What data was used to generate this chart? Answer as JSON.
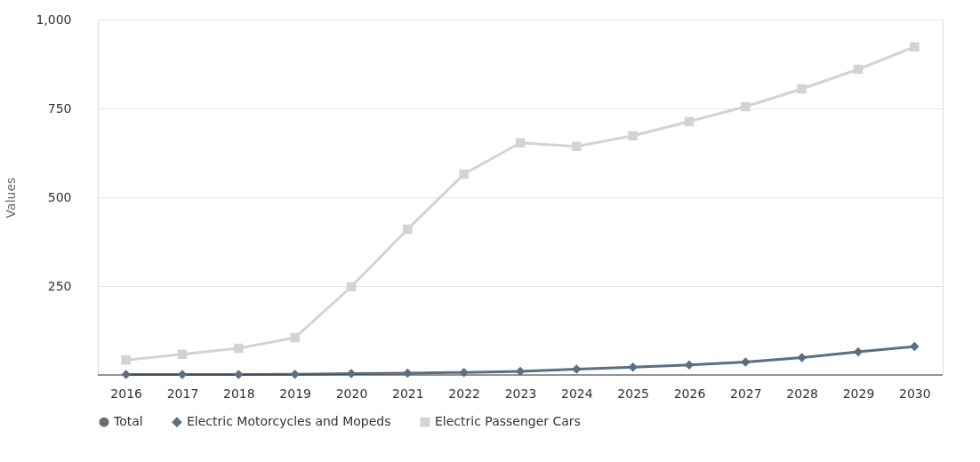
{
  "chart_data": {
    "type": "line",
    "ylabel": "Values",
    "categories": [
      "2016",
      "2017",
      "2018",
      "2019",
      "2020",
      "2021",
      "2022",
      "2023",
      "2024",
      "2025",
      "2026",
      "2027",
      "2028",
      "2029",
      "2030"
    ],
    "series": [
      {
        "name": "Total",
        "color": "#6d6d6d",
        "marker": "circle",
        "values": [
          null,
          null,
          null,
          null,
          null,
          null,
          null,
          null,
          null,
          null,
          null,
          null,
          null,
          null,
          null
        ]
      },
      {
        "name": "Electric Motorcycles and Mopeds",
        "color": "#5b6e82",
        "marker": "diamond",
        "values": [
          1,
          1,
          1,
          2,
          4,
          5,
          7,
          10,
          16,
          22,
          28,
          36,
          49,
          65,
          80
        ]
      },
      {
        "name": "Electric Passenger Cars",
        "color": "#d3d3d3",
        "marker": "square",
        "values": [
          42,
          58,
          75,
          105,
          248,
          410,
          565,
          653,
          643,
          673,
          713,
          755,
          805,
          860,
          923
        ]
      }
    ],
    "ylim": [
      0,
      1000
    ],
    "yticks": [
      {
        "value": 0,
        "label": null
      },
      250,
      500,
      750,
      {
        "value": 1000,
        "label": "1,000"
      }
    ],
    "grid": "y",
    "legend": "bottom",
    "line_style": "solid"
  }
}
